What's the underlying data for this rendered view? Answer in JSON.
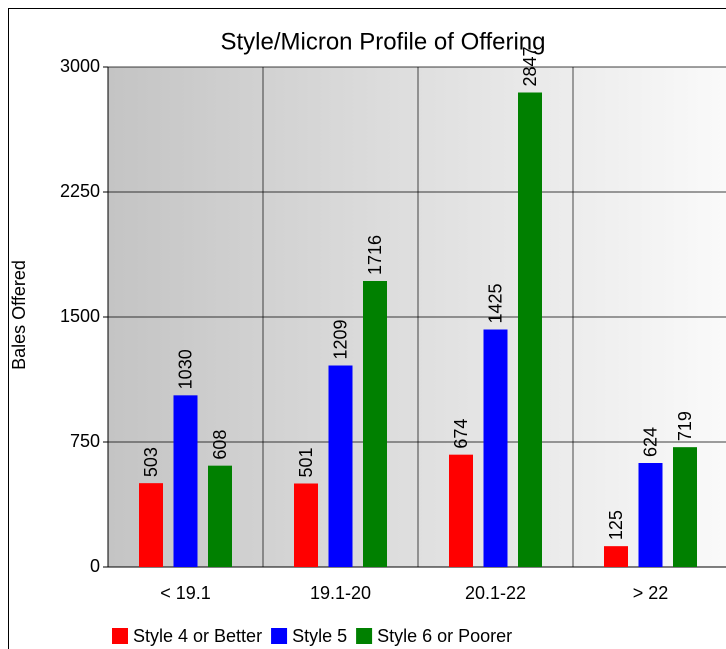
{
  "chart_data": {
    "type": "bar",
    "title": "Style/Micron Profile of Offering",
    "y_label": "Bales Offered",
    "categories": [
      "< 19.1",
      "19.1-20",
      "20.1-22",
      "> 22"
    ],
    "series": [
      {
        "name": "Style 4 or Better",
        "color": "#ff0000",
        "values": [
          503,
          501,
          674,
          125
        ]
      },
      {
        "name": "Style 5",
        "color": "#0000ff",
        "values": [
          1030,
          1209,
          1425,
          624
        ]
      },
      {
        "name": "Style 6 or Poorer",
        "color": "#008000",
        "values": [
          608,
          1716,
          2847,
          719
        ]
      }
    ],
    "ylim": [
      0,
      3000
    ],
    "yticks": [
      0,
      750,
      1500,
      2250,
      3000
    ],
    "grid": true
  }
}
